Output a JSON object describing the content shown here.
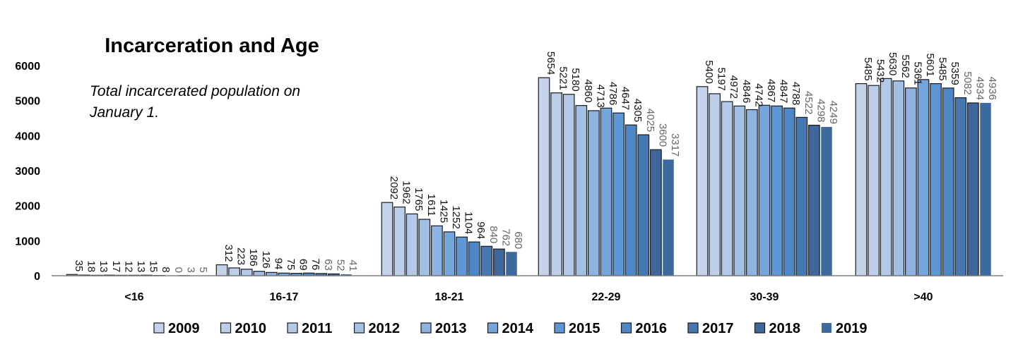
{
  "chart_data": {
    "type": "bar",
    "title": "Incarceration and Age",
    "subtitle_lines": [
      "Total incarcerated population on",
      "January 1."
    ],
    "categories": [
      "<16",
      "16-17",
      "18-21",
      "22-29",
      "30-39",
      ">40"
    ],
    "ylim": [
      0,
      6000
    ],
    "yticks": [
      "0",
      "1000",
      "2000",
      "3000",
      "4000",
      "5000",
      "6000"
    ],
    "grid": false,
    "legend_position": "bottom",
    "series": [
      {
        "name": "2009",
        "color": "#c5d3ea",
        "values": [
          35,
          312,
          2092,
          5654,
          5400,
          5485
        ]
      },
      {
        "name": "2010",
        "color": "#bccee9",
        "values": [
          18,
          223,
          1962,
          5221,
          5197,
          5432
        ]
      },
      {
        "name": "2011",
        "color": "#b3c9e7",
        "values": [
          13,
          186,
          1765,
          5180,
          4972,
          5630
        ]
      },
      {
        "name": "2012",
        "color": "#a4bfe4",
        "values": [
          17,
          126,
          1611,
          4860,
          4846,
          5562
        ]
      },
      {
        "name": "2013",
        "color": "#8eb3e0",
        "values": [
          12,
          94,
          1425,
          4713,
          4742,
          5361
        ]
      },
      {
        "name": "2014",
        "color": "#74a5db",
        "values": [
          13,
          75,
          1252,
          4786,
          4867,
          5601
        ]
      },
      {
        "name": "2015",
        "color": "#5e97d3",
        "values": [
          15,
          69,
          1104,
          4647,
          4847,
          5485
        ]
      },
      {
        "name": "2016",
        "color": "#4f87c6",
        "values": [
          8,
          76,
          964,
          4305,
          4788,
          5359
        ]
      },
      {
        "name": "2017",
        "color": "#4677b1",
        "values": [
          0,
          63,
          840,
          4025,
          4522,
          5082
        ]
      },
      {
        "name": "2018",
        "color": "#3f679b",
        "values": [
          3,
          52,
          762,
          3600,
          4298,
          4934
        ]
      },
      {
        "name": "2019",
        "color": "#3c6a9e",
        "values": [
          5,
          41,
          680,
          3317,
          4249,
          4936
        ]
      }
    ]
  }
}
